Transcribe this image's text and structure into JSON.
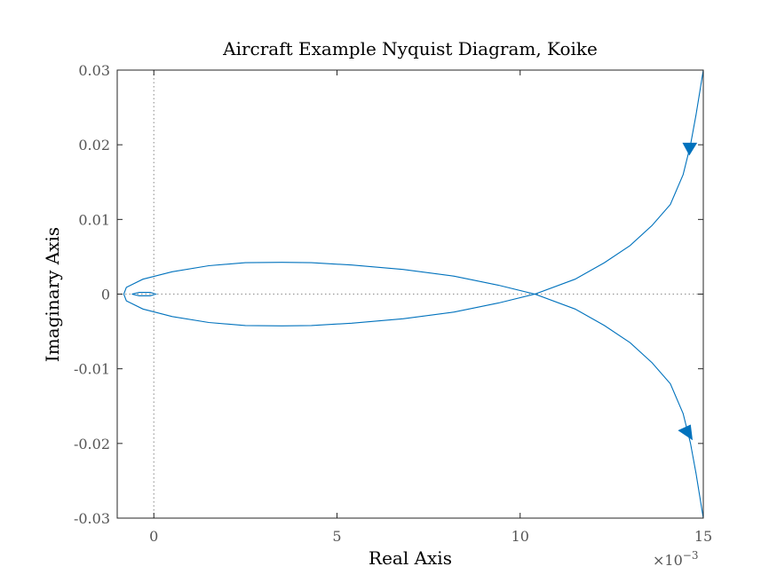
{
  "chart_data": {
    "type": "line",
    "title": "Aircraft Example Nyquist Diagram, Koike",
    "xlabel": "Real Axis",
    "ylabel": "Imaginary Axis",
    "x_exponent_label": "×10",
    "x_exponent_power": "−3",
    "xlim": [
      -1,
      15
    ],
    "ylim": [
      -0.03,
      0.03
    ],
    "x_ticks": [
      0,
      5,
      10,
      15
    ],
    "x_tick_labels": [
      "0",
      "5",
      "10",
      "15"
    ],
    "y_ticks": [
      0.03,
      0.02,
      0.01,
      0,
      -0.01,
      -0.02,
      -0.03
    ],
    "y_tick_labels": [
      "0.03",
      "0.02",
      "0.01",
      "0",
      "-0.01",
      "-0.02",
      "-0.03"
    ],
    "grid": false,
    "reference_lines": {
      "x": 0,
      "y": 0,
      "style": "dotted"
    },
    "line_color": "#0072BD",
    "series": [
      {
        "points": [
          [
            15.0,
            0.03
          ],
          [
            14.9,
            0.027
          ],
          [
            14.8,
            0.024
          ],
          [
            14.65,
            0.02
          ],
          [
            14.45,
            0.016
          ],
          [
            14.1,
            0.012
          ],
          [
            13.6,
            0.0092
          ],
          [
            13.0,
            0.0065
          ],
          [
            12.3,
            0.0042
          ],
          [
            11.5,
            0.002
          ],
          [
            10.4,
            0.0
          ],
          [
            9.4,
            0.0012
          ],
          [
            8.2,
            0.0024
          ],
          [
            6.8,
            0.0033
          ],
          [
            5.4,
            0.0039
          ],
          [
            4.3,
            0.0042
          ],
          [
            3.5,
            0.00425
          ],
          [
            2.5,
            0.0042
          ],
          [
            1.5,
            0.0038
          ],
          [
            0.5,
            0.003
          ],
          [
            -0.3,
            0.002
          ],
          [
            -0.75,
            0.0009
          ],
          [
            -0.82,
            0.0
          ],
          [
            -0.75,
            -0.0009
          ],
          [
            -0.3,
            -0.002
          ],
          [
            0.5,
            -0.003
          ],
          [
            1.5,
            -0.0038
          ],
          [
            2.5,
            -0.0042
          ],
          [
            3.5,
            -0.00425
          ],
          [
            4.3,
            -0.0042
          ],
          [
            5.4,
            -0.0039
          ],
          [
            6.8,
            -0.0033
          ],
          [
            8.2,
            -0.0024
          ],
          [
            9.4,
            -0.0012
          ],
          [
            10.4,
            0.0
          ],
          [
            11.5,
            -0.002
          ],
          [
            12.3,
            -0.0042
          ],
          [
            13.0,
            -0.0065
          ],
          [
            13.6,
            -0.0092
          ],
          [
            14.1,
            -0.012
          ],
          [
            14.45,
            -0.016
          ],
          [
            14.65,
            -0.02
          ],
          [
            14.8,
            -0.024
          ],
          [
            14.9,
            -0.027
          ],
          [
            15.0,
            -0.03
          ]
        ]
      },
      {
        "points": [
          [
            -0.6,
            0.0
          ],
          [
            -0.4,
            0.00022
          ],
          [
            -0.1,
            0.00022
          ],
          [
            0.05,
            0.0
          ],
          [
            -0.1,
            -0.00022
          ],
          [
            -0.4,
            -0.00022
          ],
          [
            -0.6,
            0.0
          ]
        ]
      }
    ],
    "arrows": [
      {
        "x": 14.62,
        "y": 0.0195,
        "direction": "down"
      },
      {
        "x": 14.55,
        "y": -0.0185,
        "direction": "left-down"
      }
    ]
  }
}
